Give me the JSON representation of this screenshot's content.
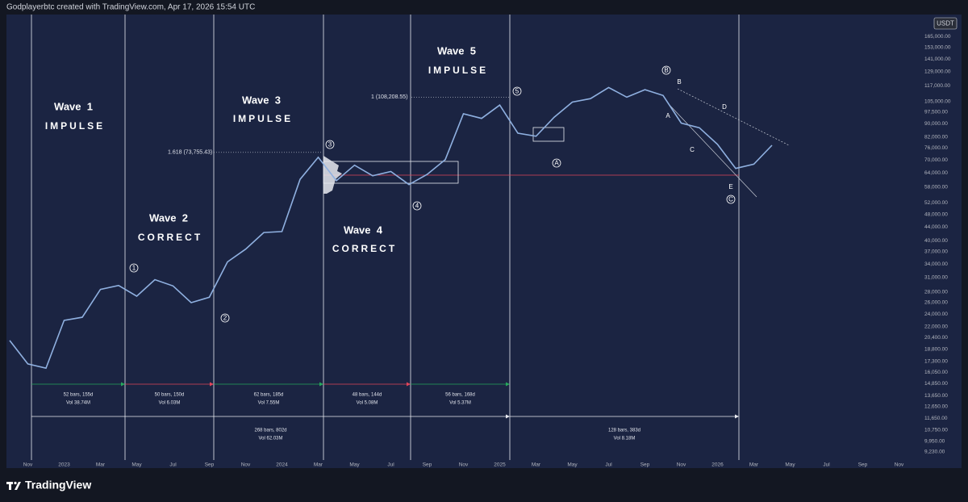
{
  "header": "Godplayerbtc created with TradingView.com, Apr 17, 2026 15:54 UTC",
  "footer": "TradingView",
  "currency": "USDT",
  "chart_data": {
    "type": "line",
    "log_scale": true,
    "grid": false,
    "color": "#8fb0e0",
    "x": [
      "2022-10",
      "2022-11",
      "2022-12",
      "2023-01",
      "2023-02",
      "2023-03",
      "2023-04",
      "2023-05",
      "2023-06",
      "2023-07",
      "2023-08",
      "2023-09",
      "2023-10",
      "2023-11",
      "2023-12",
      "2024-01",
      "2024-02",
      "2024-03",
      "2024-04",
      "2024-05",
      "2024-06",
      "2024-07",
      "2024-08",
      "2024-09",
      "2024-10",
      "2024-11",
      "2024-12",
      "2025-01",
      "2025-02",
      "2025-03",
      "2025-04",
      "2025-05",
      "2025-06",
      "2025-07",
      "2025-08",
      "2025-09",
      "2025-10",
      "2025-11",
      "2025-12",
      "2026-01",
      "2026-02",
      "2026-03",
      "2026-04"
    ],
    "values": [
      20000,
      17000,
      16500,
      23000,
      23500,
      28500,
      29300,
      27200,
      30500,
      29200,
      26000,
      27000,
      34500,
      37700,
      42300,
      42600,
      61200,
      71300,
      60600,
      67500,
      62700,
      64600,
      59000,
      63300,
      70200,
      96400,
      93400,
      102400,
      84300,
      82500,
      94200,
      104600,
      107100,
      115700,
      108200,
      114000,
      109500,
      90400,
      87500,
      78000,
      66000,
      68000,
      77500
    ],
    "xlim": [
      "2022-10",
      "2026-12"
    ],
    "xticks": [
      {
        "value": "2022-11",
        "label": "Nov"
      },
      {
        "value": "2023-01",
        "label": "2023"
      },
      {
        "value": "2023-03",
        "label": "Mar"
      },
      {
        "value": "2023-05",
        "label": "May"
      },
      {
        "value": "2023-07",
        "label": "Jul"
      },
      {
        "value": "2023-09",
        "label": "Sep"
      },
      {
        "value": "2023-11",
        "label": "Nov"
      },
      {
        "value": "2024-01",
        "label": "2024"
      },
      {
        "value": "2024-03",
        "label": "Mar"
      },
      {
        "value": "2024-05",
        "label": "May"
      },
      {
        "value": "2024-07",
        "label": "Jul"
      },
      {
        "value": "2024-09",
        "label": "Sep"
      },
      {
        "value": "2024-11",
        "label": "Nov"
      },
      {
        "value": "2025-01",
        "label": "2025"
      },
      {
        "value": "2025-03",
        "label": "Mar"
      },
      {
        "value": "2025-05",
        "label": "May"
      },
      {
        "value": "2025-07",
        "label": "Jul"
      },
      {
        "value": "2025-09",
        "label": "Sep"
      },
      {
        "value": "2025-11",
        "label": "Nov"
      },
      {
        "value": "2026-01",
        "label": "2026"
      },
      {
        "value": "2026-03",
        "label": "Mar"
      },
      {
        "value": "2026-05",
        "label": "May"
      },
      {
        "value": "2026-07",
        "label": "Jul"
      },
      {
        "value": "2026-09",
        "label": "Sep"
      },
      {
        "value": "2026-11",
        "label": "Nov"
      }
    ],
    "ylim": [
      8250,
      192000
    ],
    "yticks": [
      {
        "value": 165000,
        "label": "165,000.00"
      },
      {
        "value": 153000,
        "label": "153,000.00"
      },
      {
        "value": 141000,
        "label": "141,000.00"
      },
      {
        "value": 129000,
        "label": "129,000.00"
      },
      {
        "value": 117000,
        "label": "117,000.00"
      },
      {
        "value": 105000,
        "label": "105,000.00"
      },
      {
        "value": 97500,
        "label": "97,500.00"
      },
      {
        "value": 90000,
        "label": "90,000.00"
      },
      {
        "value": 82000,
        "label": "82,000.00"
      },
      {
        "value": 76000,
        "label": "76,000.00"
      },
      {
        "value": 70000,
        "label": "70,000.00"
      },
      {
        "value": 64000,
        "label": "64,000.00"
      },
      {
        "value": 58000,
        "label": "58,000.00"
      },
      {
        "value": 52000,
        "label": "52,000.00"
      },
      {
        "value": 48000,
        "label": "48,000.00"
      },
      {
        "value": 44000,
        "label": "44,000.00"
      },
      {
        "value": 40000,
        "label": "40,000.00"
      },
      {
        "value": 37000,
        "label": "37,000.00"
      },
      {
        "value": 34000,
        "label": "34,000.00"
      },
      {
        "value": 31000,
        "label": "31,000.00"
      },
      {
        "value": 28000,
        "label": "28,000.00"
      },
      {
        "value": 26000,
        "label": "26,000.00"
      },
      {
        "value": 24000,
        "label": "24,000.00"
      },
      {
        "value": 22000,
        "label": "22,000.00"
      },
      {
        "value": 20400,
        "label": "20,400.00"
      },
      {
        "value": 18800,
        "label": "18,800.00"
      },
      {
        "value": 17300,
        "label": "17,300.00"
      },
      {
        "value": 16050,
        "label": "16,050.00"
      },
      {
        "value": 14850,
        "label": "14,850.00"
      },
      {
        "value": 13650,
        "label": "13,650.00"
      },
      {
        "value": 12650,
        "label": "12,650.00"
      },
      {
        "value": 11650,
        "label": "11,650.00"
      },
      {
        "value": 10750,
        "label": "10,750.00"
      },
      {
        "value": 9950,
        "label": "9,950.00"
      },
      {
        "value": 9230,
        "label": "9,230.00"
      }
    ],
    "fib_levels": [
      {
        "value": 73755.43,
        "label": "1.618 (73,755.43)"
      },
      {
        "value": 108208.55,
        "label": "1 (108,208.55)"
      }
    ],
    "waves": [
      {
        "title": "Wave  1",
        "subtitle": "IMPULSE"
      },
      {
        "title": "Wave  2",
        "subtitle": "CORRECT"
      },
      {
        "title": "Wave  3",
        "subtitle": "IMPULSE"
      },
      {
        "title": "Wave  4",
        "subtitle": "CORRECT"
      },
      {
        "title": "Wave  5",
        "subtitle": "IMPULSE"
      }
    ],
    "elliott_labels": [
      "1",
      "2",
      "3",
      "4",
      "5",
      "A",
      "B",
      "C"
    ],
    "abcde_labels": [
      "A",
      "B",
      "C",
      "D",
      "E"
    ],
    "measures": [
      {
        "bars": "52 bars, 155d",
        "vol": "Vol 38.74M"
      },
      {
        "bars": "50 bars, 150d",
        "vol": "Vol 6.03M"
      },
      {
        "bars": "62 bars, 185d",
        "vol": "Vol 7.55M"
      },
      {
        "bars": "48 bars, 144d",
        "vol": "Vol 5.08M"
      },
      {
        "bars": "56 bars, 168d",
        "vol": "Vol 5.37M"
      },
      {
        "bars": "268 bars, 802d",
        "vol": "Vol 62.03M"
      },
      {
        "bars": "128 bars, 383d",
        "vol": "Vol 8.18M"
      }
    ]
  }
}
